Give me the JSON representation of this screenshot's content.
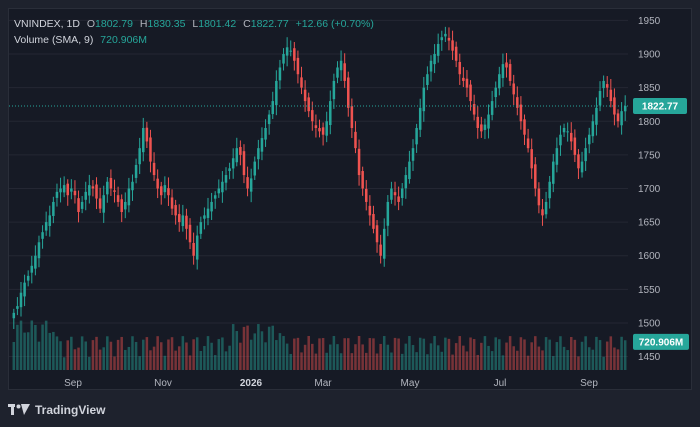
{
  "legend": {
    "symbol": "VNINDEX, 1D",
    "o_label": "O",
    "o_value": "1802.79",
    "h_label": "H",
    "h_value": "1830.35",
    "l_label": "L",
    "l_value": "1801.42",
    "c_label": "C",
    "c_value": "1822.77",
    "change": "+12.66 (+0.70%)",
    "volume_label": "Volume (SMA, 9)",
    "volume_value": "720.906M"
  },
  "price_badge": "1822.77",
  "volume_badge": "720.906M",
  "footer": {
    "brand": "TradingView",
    "logo_icon": "tradingview-logo-icon"
  },
  "colors": {
    "up": "#26a69a",
    "down": "#ef5350",
    "background": "#161a25",
    "badge": "#26a69a",
    "price_line": "#26a69a"
  },
  "chart_data": {
    "type": "candlestick",
    "symbol": "VNINDEX",
    "interval": "1D",
    "last_close": 1822.77,
    "y_ticks": [
      1450,
      1500,
      1550,
      1600,
      1650,
      1700,
      1750,
      1800,
      1850,
      1900,
      1950
    ],
    "ylim": [
      1430,
      1967
    ],
    "x_ticks": [
      {
        "label": "Sep",
        "bold": false
      },
      {
        "label": "Nov",
        "bold": false
      },
      {
        "label": "2026",
        "bold": true
      },
      {
        "label": "Mar",
        "bold": false
      },
      {
        "label": "May",
        "bold": false
      },
      {
        "label": "Jul",
        "bold": false
      },
      {
        "label": "Sep",
        "bold": false
      }
    ],
    "approx_closes": [
      1515,
      1525,
      1545,
      1560,
      1570,
      1585,
      1600,
      1620,
      1635,
      1650,
      1660,
      1680,
      1695,
      1700,
      1705,
      1690,
      1700,
      1690,
      1665,
      1680,
      1695,
      1705,
      1700,
      1685,
      1670,
      1690,
      1710,
      1700,
      1695,
      1680,
      1665,
      1680,
      1700,
      1710,
      1735,
      1760,
      1790,
      1770,
      1740,
      1720,
      1700,
      1690,
      1705,
      1690,
      1670,
      1660,
      1650,
      1660,
      1640,
      1620,
      1600,
      1630,
      1650,
      1660,
      1670,
      1680,
      1690,
      1700,
      1710,
      1720,
      1730,
      1745,
      1760,
      1750,
      1720,
      1700,
      1715,
      1740,
      1760,
      1775,
      1790,
      1810,
      1830,
      1860,
      1880,
      1900,
      1910,
      1905,
      1890,
      1870,
      1850,
      1830,
      1815,
      1800,
      1790,
      1785,
      1780,
      1800,
      1830,
      1860,
      1880,
      1890,
      1860,
      1820,
      1790,
      1760,
      1720,
      1700,
      1680,
      1660,
      1640,
      1620,
      1600,
      1640,
      1680,
      1700,
      1690,
      1680,
      1700,
      1720,
      1740,
      1760,
      1790,
      1820,
      1850,
      1870,
      1890,
      1900,
      1915,
      1925,
      1930,
      1920,
      1905,
      1890,
      1870,
      1860,
      1850,
      1830,
      1810,
      1790,
      1785,
      1795,
      1810,
      1830,
      1850,
      1870,
      1885,
      1880,
      1860,
      1840,
      1820,
      1800,
      1780,
      1760,
      1730,
      1700,
      1675,
      1660,
      1680,
      1710,
      1740,
      1760,
      1780,
      1790,
      1785,
      1770,
      1750,
      1730,
      1740,
      1760,
      1780,
      1800,
      1820,
      1845,
      1860,
      1850,
      1830,
      1810,
      1800,
      1815,
      1822.77
    ],
    "volume_sma_9": "720.906M"
  }
}
